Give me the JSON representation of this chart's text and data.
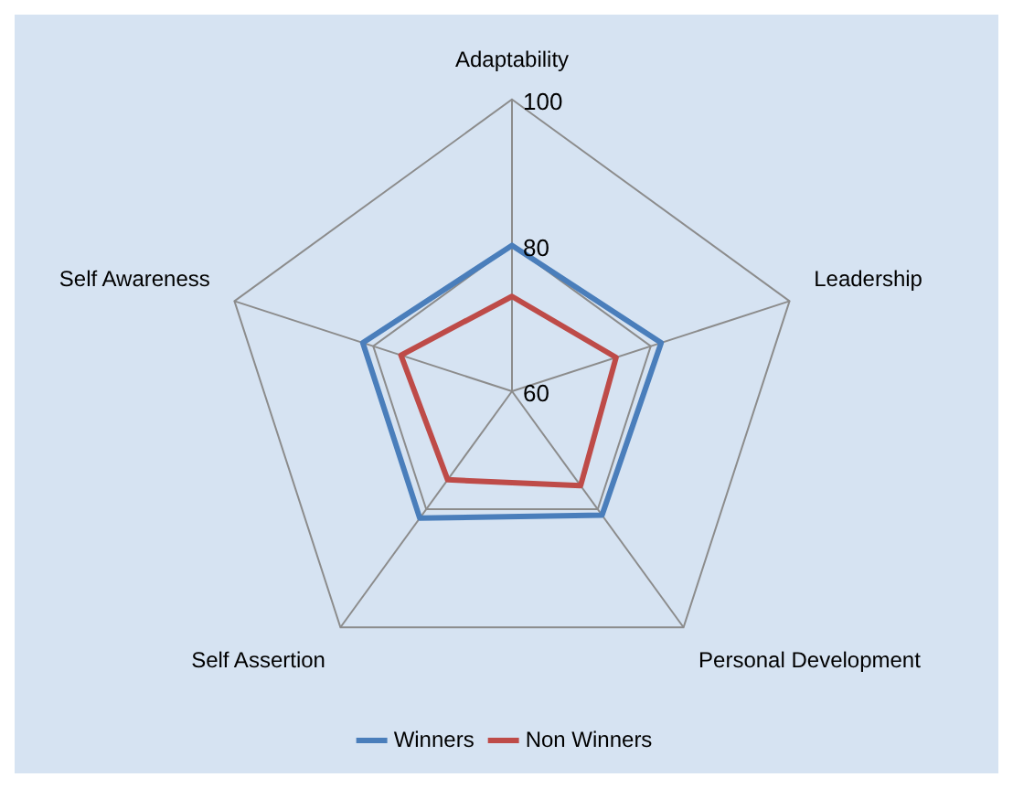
{
  "chart_data": {
    "type": "radar",
    "categories": [
      "Adaptability",
      "Leadership",
      "Personal Development",
      "Self Assertion",
      "Self Awareness"
    ],
    "series": [
      {
        "name": "Winners",
        "color": "#4a7ebb",
        "values": [
          80,
          81.5,
          81,
          81.5,
          81.5
        ]
      },
      {
        "name": "Non Winners",
        "color": "#be4b48",
        "values": [
          73,
          75,
          76,
          75,
          76
        ]
      }
    ],
    "ylim": [
      60,
      100
    ],
    "yticks": [
      60,
      80,
      100
    ],
    "grid": true,
    "legend": "bottom",
    "marker": "none",
    "line_style": "solid"
  }
}
